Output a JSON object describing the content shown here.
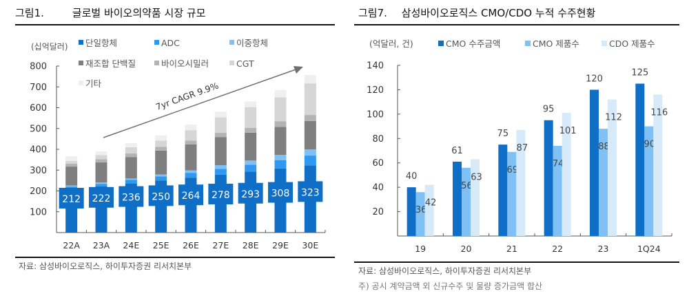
{
  "left": {
    "figure_number": "그림1.",
    "title": "글로벌 바이오의약품 시장 규모",
    "source": "자료: 삼성바이오로직스, 하이투자증권 리서치본부"
  },
  "right": {
    "figure_number": "그림7.",
    "title": "삼성바이오로직스 CMO/CDO 누적 수주현황",
    "source": "자료: 삼성바이오로직스, 하이투자증권 리서치본부",
    "note": "주) 공시 계약금액 외 신규수주 및 물량 증가금액 합산"
  },
  "chart_data": [
    {
      "type": "bar",
      "stacked": true,
      "title": "글로벌 바이오의약품 시장 규모",
      "unit_label": "(십억달러)",
      "categories": [
        "22A",
        "23A",
        "24E",
        "25E",
        "26E",
        "27E",
        "28E",
        "29E",
        "30E"
      ],
      "ylim": [
        0,
        800
      ],
      "yticks": [
        100,
        200,
        300,
        400,
        500,
        600,
        700,
        800
      ],
      "legend_position": "top",
      "series": [
        {
          "name": "단일항체",
          "color": "#0f6fc6",
          "values": [
            212,
            222,
            236,
            250,
            264,
            278,
            293,
            308,
            323
          ]
        },
        {
          "name": "ADC",
          "color": "#2f98f0",
          "values": [
            8,
            12,
            17,
            20,
            23,
            28,
            33,
            40,
            47
          ]
        },
        {
          "name": "이중항체",
          "color": "#7fc0f5",
          "values": [
            6,
            7,
            7,
            9,
            12,
            18,
            20,
            25,
            30
          ]
        },
        {
          "name": "재조합 단백질",
          "color": "#7f7f7f",
          "values": [
            91,
            96,
            103,
            115,
            125,
            135,
            134,
            135,
            136
          ]
        },
        {
          "name": "바이오시밀러",
          "color": "#b3b3b3",
          "values": [
            14,
            15,
            17,
            18,
            18,
            20,
            23,
            27,
            29
          ]
        },
        {
          "name": "CGT",
          "color": "#d6d6d6",
          "values": [
            13,
            20,
            30,
            30,
            50,
            75,
            100,
            115,
            152
          ]
        },
        {
          "name": "기타",
          "color": "#efefef",
          "values": [
            23,
            18,
            20,
            25,
            27,
            27,
            27,
            35,
            40
          ]
        }
      ],
      "data_labels_series": "단일항체",
      "annotation": {
        "text": "7yr CAGR 9.9%",
        "type": "arrow"
      }
    },
    {
      "type": "bar",
      "title": "삼성바이오로직스 CMO/CDO 누적 수주현황",
      "unit_label": "(억달러, 건)",
      "categories": [
        "19",
        "20",
        "21",
        "22",
        "23",
        "1Q24"
      ],
      "ylim": [
        0,
        140
      ],
      "yticks": [
        20,
        40,
        60,
        80,
        100,
        120,
        140
      ],
      "legend_position": "top",
      "series": [
        {
          "name": "CMO 수주금액",
          "color": "#0f6fc6",
          "values": [
            40,
            61,
            75,
            95,
            120,
            125
          ]
        },
        {
          "name": "CMO 제품수",
          "color": "#7fc0f5",
          "values": [
            36,
            56,
            69,
            74,
            88,
            90
          ]
        },
        {
          "name": "CDO 제품수",
          "color": "#d6eaf9",
          "values": [
            42,
            63,
            87,
            101,
            112,
            116
          ]
        }
      ]
    }
  ]
}
